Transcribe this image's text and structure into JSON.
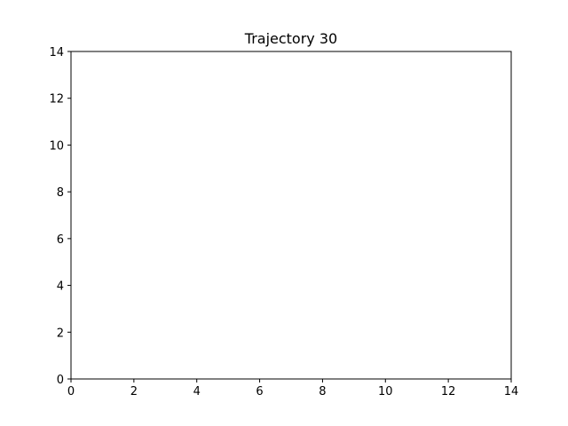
{
  "chart_data": {
    "type": "line",
    "title": "Trajectory 30",
    "xlabel": "",
    "ylabel": "",
    "xlim": [
      0,
      14
    ],
    "ylim": [
      0,
      14
    ],
    "xticks": [
      0,
      2,
      4,
      6,
      8,
      10,
      12,
      14
    ],
    "yticks": [
      0,
      2,
      4,
      6,
      8,
      10,
      12,
      14
    ],
    "grid": false,
    "series": [],
    "colors": {
      "axes": "#000000",
      "background": "#ffffff"
    }
  }
}
